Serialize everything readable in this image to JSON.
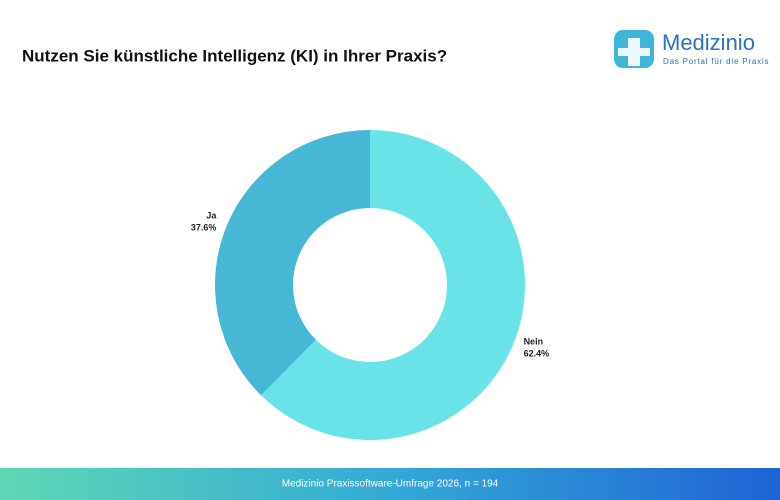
{
  "chart_data": {
    "type": "pie",
    "title": "Nutzen Sie künstliche Intelligenz (KI) in Ihrer Praxis?",
    "categories": [
      "Nein",
      "Ja"
    ],
    "values": [
      62.4,
      37.6
    ],
    "value_labels": [
      "62.4%",
      "37.6%"
    ],
    "colors": [
      "#6ae3e8",
      "#46b8d6"
    ],
    "donut": true,
    "source": "Medizinio Praxissoftware-Umfrage 2026, n = 194"
  },
  "logo": {
    "name": "Medizinio",
    "tagline": "Das Portal für die Praxis"
  }
}
